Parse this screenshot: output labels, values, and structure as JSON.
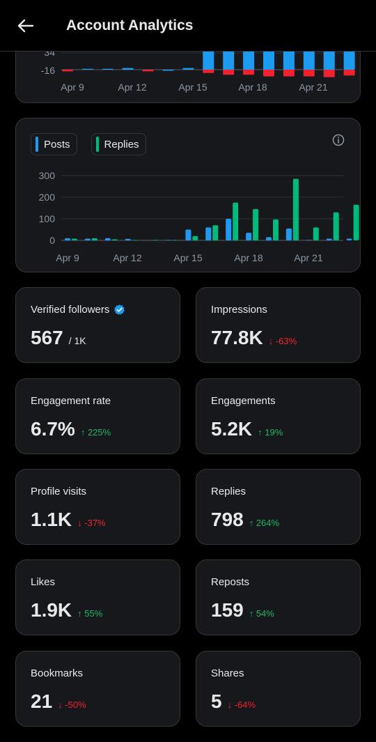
{
  "header": {
    "title": "Account Analytics"
  },
  "colors": {
    "posts": "#1d9bf0",
    "replies": "#00ba7c",
    "negative": "#f4212e",
    "up": "#1ab866",
    "down": "#f4212e"
  },
  "chart_data": [
    {
      "type": "bar",
      "title": "",
      "partially_visible": true,
      "y_ticks": [
        "34",
        "-16"
      ],
      "x_tick_labels": [
        "Apr 9",
        "Apr 12",
        "Apr 15",
        "Apr 18",
        "Apr 21"
      ],
      "categories": [
        "Apr 8",
        "Apr 9",
        "Apr 10",
        "Apr 11",
        "Apr 12",
        "Apr 13",
        "Apr 14",
        "Apr 15",
        "Apr 16",
        "Apr 17",
        "Apr 18",
        "Apr 19",
        "Apr 20",
        "Apr 21",
        "Apr 22"
      ],
      "series": [
        {
          "name": "",
          "values": [
            -2,
            1,
            1,
            2,
            -2,
            0,
            2,
            60,
            60,
            60,
            60,
            60,
            60,
            60,
            60
          ]
        },
        {
          "name": "",
          "values": [
            0,
            0,
            0,
            0,
            0,
            0,
            0,
            -4,
            -6,
            -6,
            -8,
            -8,
            -8,
            -9,
            -7
          ]
        }
      ]
    },
    {
      "type": "bar",
      "title": "",
      "ylim": [
        0,
        300
      ],
      "y_ticks": [
        "300",
        "200",
        "100",
        "0"
      ],
      "x_tick_labels": [
        "Apr 9",
        "Apr 12",
        "Apr 15",
        "Apr 18",
        "Apr 21"
      ],
      "legend": [
        "Posts",
        "Replies"
      ],
      "categories": [
        "Apr 8",
        "Apr 9",
        "Apr 10",
        "Apr 11",
        "Apr 12",
        "Apr 13",
        "Apr 14",
        "Apr 15",
        "Apr 16",
        "Apr 17",
        "Apr 18",
        "Apr 19",
        "Apr 20",
        "Apr 21",
        "Apr 22"
      ],
      "series": [
        {
          "name": "Posts",
          "values": [
            10,
            8,
            10,
            7,
            1,
            2,
            50,
            60,
            100,
            35,
            15,
            55,
            2,
            8,
            8
          ]
        },
        {
          "name": "Replies",
          "values": [
            8,
            10,
            5,
            2,
            2,
            2,
            20,
            70,
            175,
            145,
            97,
            285,
            60,
            130,
            165
          ]
        }
      ]
    }
  ],
  "metrics": [
    {
      "label": "Verified followers",
      "value": "567",
      "sub": "/ 1K",
      "delta": "",
      "verified": true
    },
    {
      "label": "Impressions",
      "value": "77.8K",
      "delta": "↓ -63%",
      "dir": "down"
    },
    {
      "label": "Engagement rate",
      "value": "6.7%",
      "delta": "↑ 225%",
      "dir": "up"
    },
    {
      "label": "Engagements",
      "value": "5.2K",
      "delta": "↑ 19%",
      "dir": "up"
    },
    {
      "label": "Profile visits",
      "value": "1.1K",
      "delta": "↓ -37%",
      "dir": "down"
    },
    {
      "label": "Replies",
      "value": "798",
      "delta": "↑ 264%",
      "dir": "up"
    },
    {
      "label": "Likes",
      "value": "1.9K",
      "delta": "↑ 55%",
      "dir": "up"
    },
    {
      "label": "Reposts",
      "value": "159",
      "delta": "↑ 54%",
      "dir": "up"
    },
    {
      "label": "Bookmarks",
      "value": "21",
      "delta": "↓ -50%",
      "dir": "down"
    },
    {
      "label": "Shares",
      "value": "5",
      "delta": "↓ -64%",
      "dir": "down"
    }
  ]
}
